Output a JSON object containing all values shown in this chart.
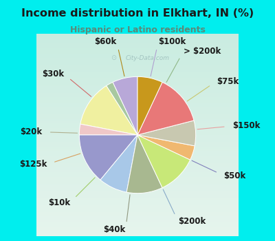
{
  "title": "Income distribution in Elkhart, IN (%)",
  "subtitle": "Hispanic or Latino residents",
  "title_color": "#1a1a1a",
  "subtitle_color": "#5a8a7a",
  "bg_color": "#00eeee",
  "chart_bg_top": "#e8f5f0",
  "chart_bg_bottom": "#d0eee0",
  "labels": [
    "$100k",
    "> $200k",
    "$75k",
    "$150k",
    "$50k",
    "$200k",
    "$40k",
    "$10k",
    "$125k",
    "$20k",
    "$30k",
    "$60k"
  ],
  "values": [
    7,
    2,
    13,
    3,
    14,
    8,
    10,
    11,
    4,
    7,
    14,
    7
  ],
  "colors": [
    "#b8a8d8",
    "#a8c8a0",
    "#f0f0a0",
    "#f0c8c8",
    "#9898cc",
    "#a8c8e8",
    "#a8b890",
    "#c8e878",
    "#f0b870",
    "#c8c8b0",
    "#e87878",
    "#c8981c"
  ],
  "line_colors": [
    "#b8a8d8",
    "#a8c8a0",
    "#d8d870",
    "#e8a0a0",
    "#8888bb",
    "#88a8cc",
    "#8898608",
    "#a8d858",
    "#e0a060",
    "#b8b898",
    "#d86868",
    "#b88818"
  ],
  "label_fontsize": 8.5,
  "watermark": "City-Data.com"
}
